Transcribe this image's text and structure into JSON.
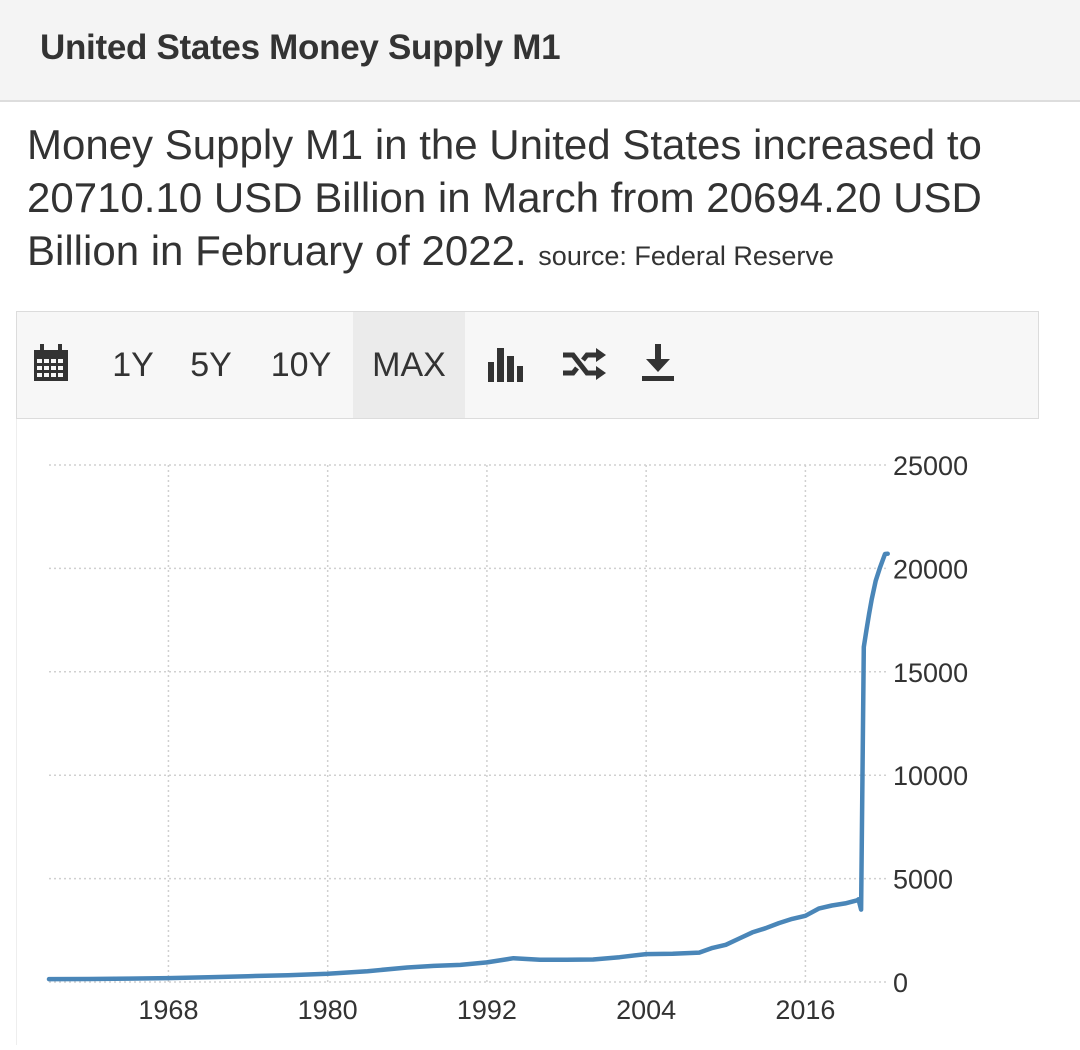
{
  "header": {
    "title": "United States Money Supply M1"
  },
  "summary": {
    "text": "Money Supply M1 in the United States increased to 20710.10 USD Billion in March from 20694.20 USD Billion in February of 2022.",
    "source": "source: Federal Reserve"
  },
  "toolbar": {
    "ranges": [
      "1Y",
      "5Y",
      "10Y",
      "MAX"
    ],
    "active": "MAX",
    "icons": [
      "calendar-icon",
      "bar-chart-icon",
      "shuffle-icon",
      "download-icon"
    ]
  },
  "colors": {
    "line": "#4a86b8",
    "grid": "#d0d0d0",
    "text": "#333333"
  },
  "chart_data": {
    "type": "line",
    "title": "",
    "xlabel": "",
    "ylabel": "",
    "xlim": [
      1959,
      2022.3
    ],
    "ylim": [
      0,
      25000
    ],
    "x_ticks": [
      "1968",
      "1980",
      "1992",
      "2004",
      "2016"
    ],
    "y_ticks": [
      "25000",
      "20000",
      "15000",
      "10000",
      "5000",
      "0"
    ],
    "y_axis_position": "right",
    "grid": true,
    "series": [
      {
        "name": "",
        "x": [
          1959,
          1962,
          1965,
          1968,
          1971,
          1974,
          1977,
          1980,
          1983,
          1986,
          1988,
          1990,
          1992,
          1994,
          1996,
          1998,
          2000,
          2002,
          2004,
          2006,
          2008,
          2009,
          2010,
          2011,
          2012,
          2013,
          2014,
          2015,
          2016,
          2017,
          2018,
          2019,
          2019.9,
          2020.0,
          2020.2,
          2020.4,
          2020.6,
          2020.8,
          2021.0,
          2021.3,
          2021.6,
          2022.0,
          2022.2
        ],
        "y": [
          140,
          147,
          165,
          190,
          230,
          280,
          330,
          400,
          520,
          700,
          780,
          825,
          950,
          1150,
          1080,
          1075,
          1090,
          1200,
          1350,
          1370,
          1420,
          1650,
          1800,
          2100,
          2400,
          2600,
          2850,
          3050,
          3200,
          3550,
          3700,
          3800,
          3950,
          4000,
          3500,
          16200,
          17000,
          17800,
          18500,
          19400,
          20000,
          20694.2,
          20710.1
        ]
      }
    ]
  }
}
